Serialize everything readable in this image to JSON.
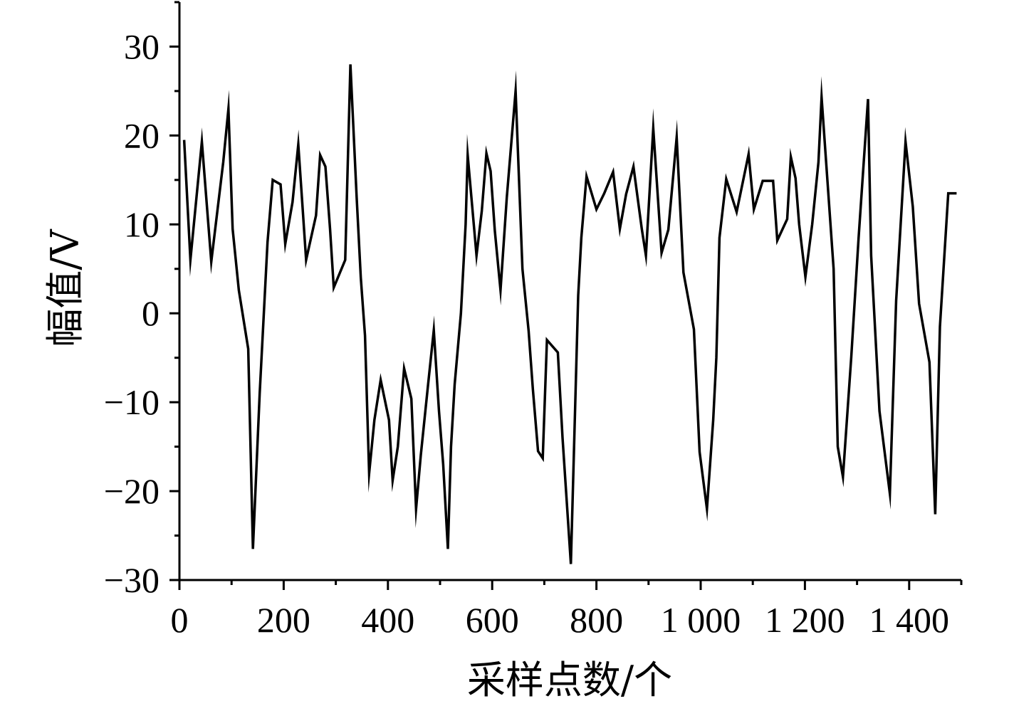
{
  "chart_data": {
    "type": "line",
    "title": "",
    "xlabel": "采样点数/个",
    "ylabel": "幅值/V",
    "xlim": [
      0,
      1500
    ],
    "ylim": [
      -30,
      35
    ],
    "x_ticks": [
      0,
      200,
      400,
      600,
      800,
      1000,
      1200,
      1400
    ],
    "x_tick_labels": [
      "0",
      "200",
      "400",
      "600",
      "800",
      "1 000",
      "1 200",
      "1 400"
    ],
    "y_ticks": [
      -30,
      -20,
      -10,
      0,
      10,
      20,
      30
    ],
    "y_tick_labels": [
      "−30",
      "−20",
      "−10",
      "0",
      "10",
      "20",
      "30"
    ],
    "grid": false,
    "line_color": "#000000",
    "series": [
      {
        "x": [
          9,
          21,
          43,
          61,
          84,
          94,
          102,
          114,
          132,
          141,
          154,
          169,
          179,
          194,
          203,
          217,
          228,
          235,
          243,
          262,
          270,
          280,
          289,
          296,
          318,
          328,
          340,
          348,
          356,
          364,
          374,
          386,
          402,
          409,
          419,
          431,
          445,
          454,
          463,
          477,
          488,
          498,
          506,
          515,
          521,
          528,
          540,
          549,
          553,
          570,
          580,
          589,
          597,
          605,
          616,
          628,
          645,
          658,
          670,
          678,
          688,
          697,
          705,
          726,
          735,
          751,
          765,
          771,
          781,
          800,
          815,
          832,
          845,
          857,
          871,
          887,
          895,
          909,
          925,
          938,
          954,
          967,
          987,
          998,
          1012,
          1024,
          1030,
          1036,
          1049,
          1069,
          1092,
          1102,
          1119,
          1139,
          1147,
          1166,
          1173,
          1182,
          1189,
          1201,
          1214,
          1226,
          1232,
          1255,
          1263,
          1273,
          1289,
          1303,
          1321,
          1327,
          1343,
          1363,
          1375,
          1393,
          1407,
          1419,
          1439,
          1450,
          1459,
          1475,
          1491
        ],
        "values": [
          19.5,
          6,
          19.3,
          5.8,
          17,
          23,
          9.5,
          2.6,
          -4,
          -26.5,
          -9,
          8,
          15,
          14.5,
          7.8,
          12.5,
          19,
          13,
          6,
          11,
          17.8,
          16.5,
          9.5,
          2.9,
          6,
          28,
          13,
          4,
          -2.5,
          -18,
          -12,
          -7.5,
          -12,
          -18.8,
          -15,
          -6.2,
          -9.6,
          -22,
          -16,
          -8,
          -1.9,
          -11,
          -17,
          -26.5,
          -15,
          -8,
          0,
          10,
          17.8,
          6.5,
          11.5,
          18,
          16,
          9.3,
          2.6,
          13,
          25,
          5,
          -2,
          -8.5,
          -15.5,
          -16.3,
          -3,
          -4.4,
          -14,
          -28.2,
          2,
          8.5,
          15.4,
          11.7,
          13.5,
          15.9,
          9.5,
          13.4,
          16.5,
          9.5,
          6.5,
          20.8,
          6.8,
          9.4,
          19.8,
          4.6,
          -1.8,
          -15.6,
          -22,
          -12,
          -5,
          8.5,
          15.1,
          11.4,
          17.9,
          11.7,
          14.9,
          14.9,
          8.2,
          10.6,
          17.6,
          15.2,
          10,
          4.1,
          10,
          17,
          24.3,
          5,
          -15,
          -18.4,
          -4.9,
          8.5,
          24.1,
          6.5,
          -11,
          -20.3,
          1.4,
          19.3,
          12,
          1.1,
          -5.5,
          -22.6,
          -1.5,
          13.5,
          13.5
        ]
      }
    ]
  }
}
